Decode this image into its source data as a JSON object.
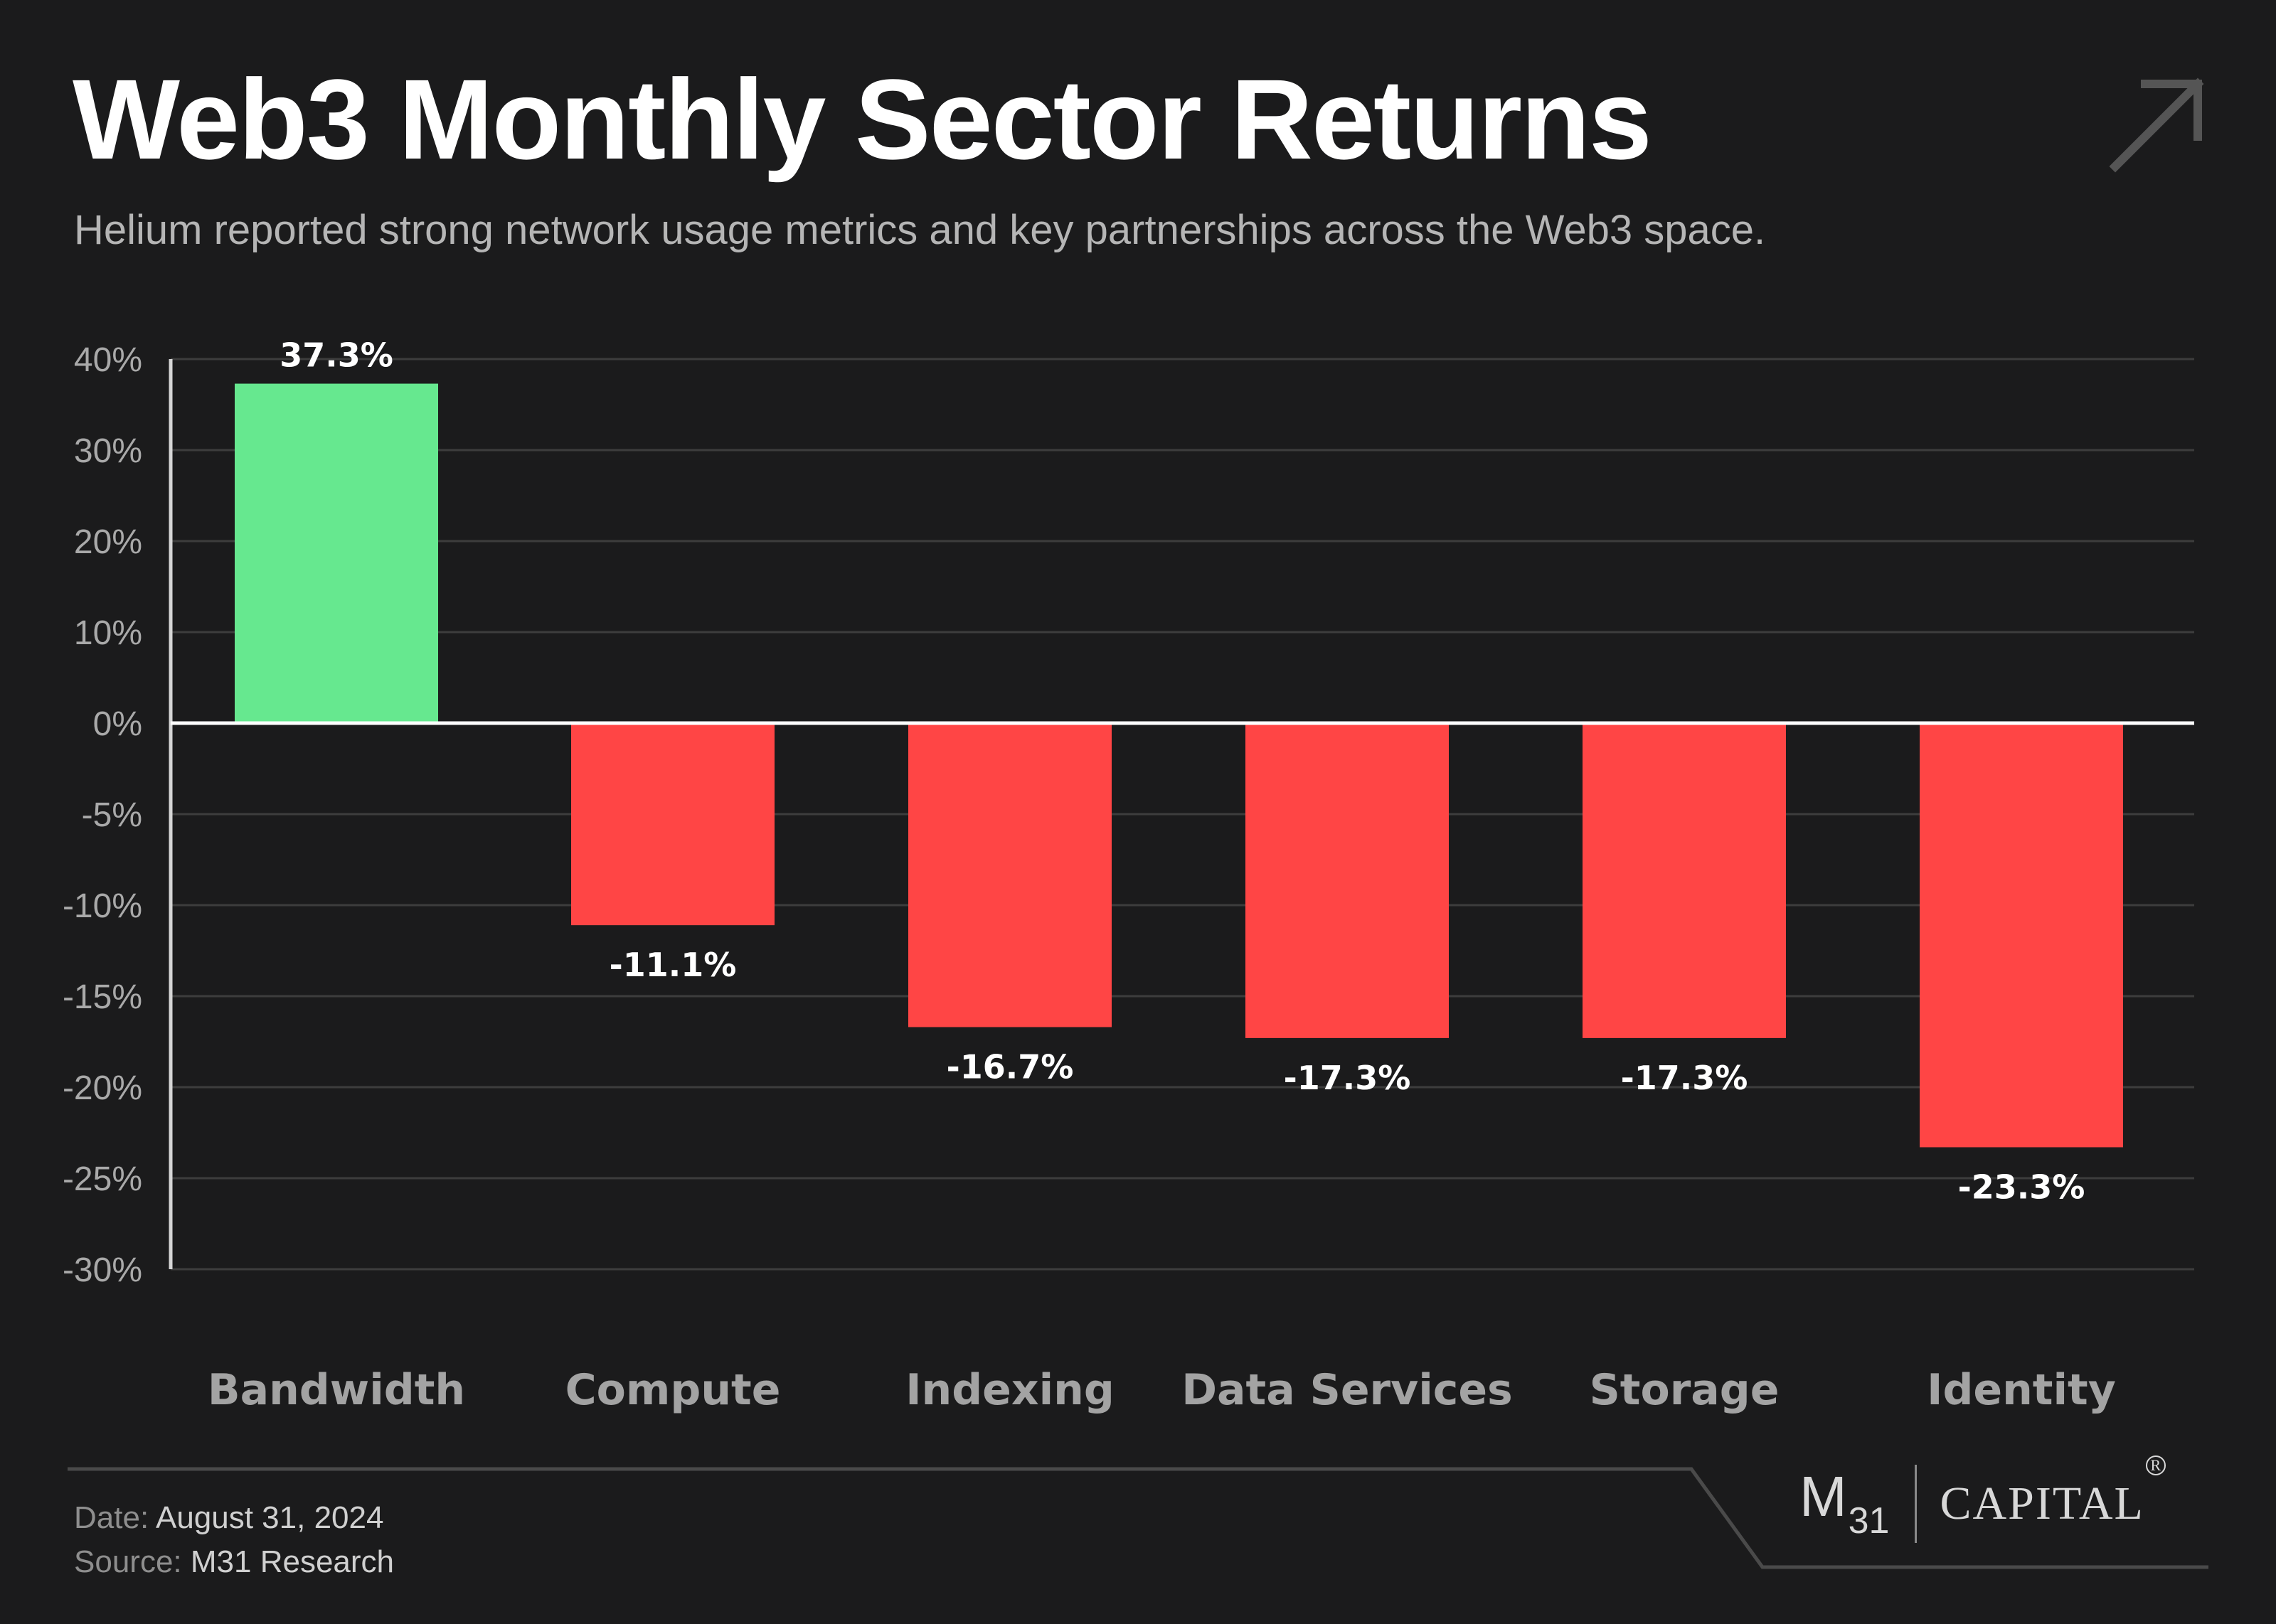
{
  "header": {
    "title": "Web3 Monthly Sector Returns",
    "subtitle": "Helium reported strong network usage metrics and key partnerships across the Web3 space."
  },
  "icons": {
    "corner": "arrow-up-right-icon"
  },
  "colors": {
    "background": "#1b1b1c",
    "positive": "#66e88f",
    "negative": "#ff4545",
    "gridline": "#3d3d3d",
    "zero_line": "#ffffff"
  },
  "chart_data": {
    "type": "bar",
    "title": "Web3 Monthly Sector Returns",
    "xlabel": "",
    "ylabel": "",
    "categories": [
      "Bandwidth",
      "Compute",
      "Indexing",
      "Data Services",
      "Storage",
      "Identity"
    ],
    "values": [
      37.3,
      -11.1,
      -16.7,
      -17.3,
      -17.3,
      -23.3
    ],
    "value_labels": [
      "37.3%",
      "-11.1%",
      "-16.7%",
      "-17.3%",
      "-17.3%",
      "-23.3%"
    ],
    "y_ticks": [
      "40%",
      "30%",
      "20%",
      "10%",
      "0%",
      "-5%",
      "-10%",
      "-15%",
      "-20%",
      "-25%",
      "-30%"
    ],
    "y_tick_values": [
      40,
      30,
      20,
      10,
      0,
      -5,
      -10,
      -15,
      -20,
      -25,
      -30
    ],
    "scale_note": "asymmetric axis: 10% steps above zero, 5% steps below zero",
    "grid": true,
    "legend": "none"
  },
  "footer": {
    "date_label": "Date:",
    "date_value": "August 31, 2024",
    "source_label": "Source:",
    "source_value": "M31 Research",
    "logo_m": "M",
    "logo_sub": "31",
    "logo_capital": "CAPITAL",
    "logo_registered": "R"
  }
}
